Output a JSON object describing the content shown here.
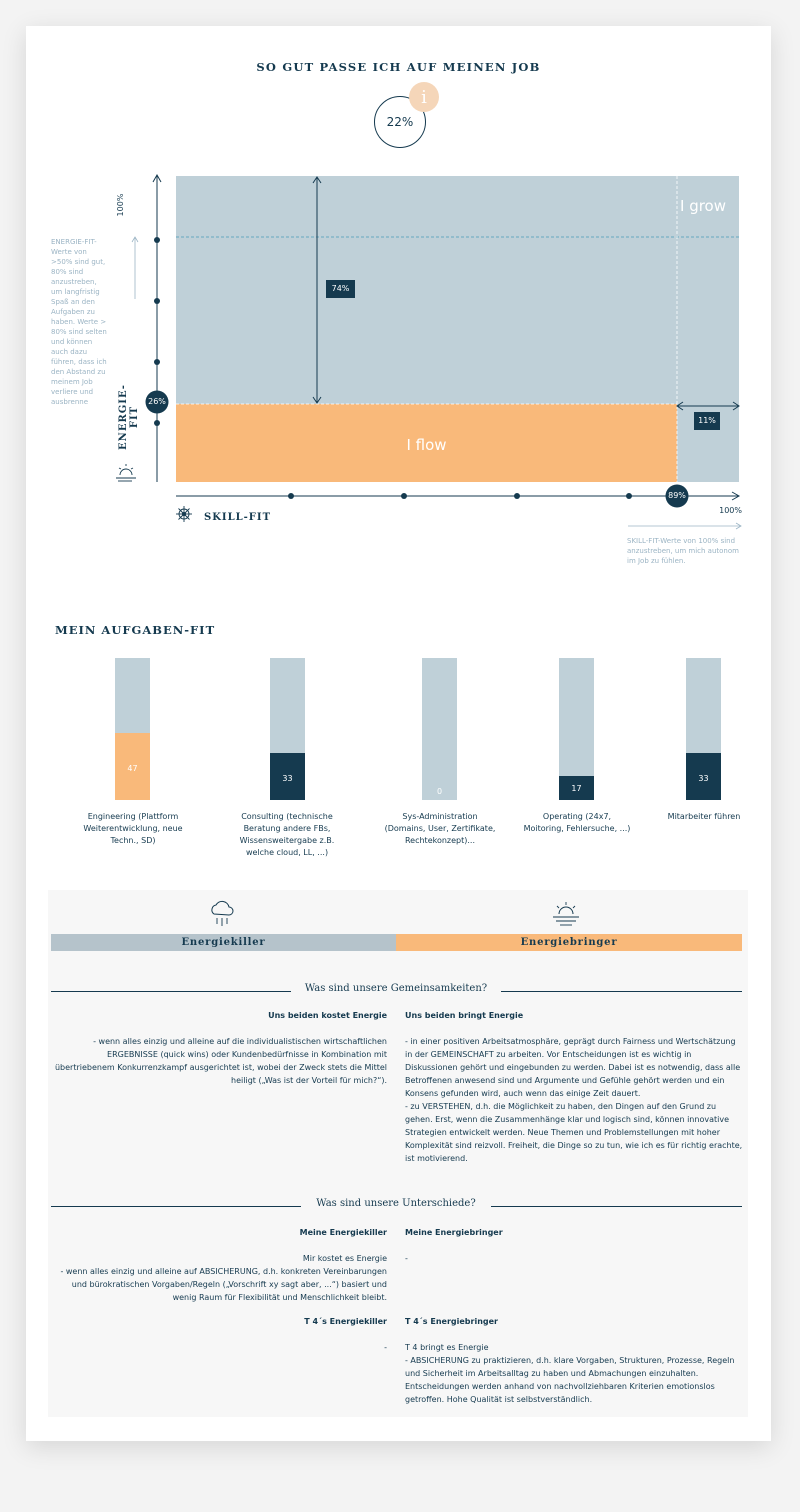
{
  "header": {
    "title": "SO GUT PASSE ICH AUF MEINEN JOB",
    "score": "22%",
    "info_glyph": "i"
  },
  "matrix": {
    "y_axis_label": "ENERGIE-FIT",
    "x_axis_label": "SKILL-FIT",
    "y_top_label": "100%",
    "x_right_label": "100%",
    "energy_value": "26%",
    "skill_value": "89%",
    "gap_energy": "74%",
    "gap_skill": "11%",
    "zone_grow": "I grow",
    "zone_flow": "I flow",
    "energy_note": "ENERGIE-FIT-Werte von >50% sind gut, 80% sind anzustreben, um langfristig Spaß an den Aufgaben zu haben. Werte > 80% sind selten und können auch dazu führen, dass ich den Abstand zu meinem Job verliere und ausbrenne",
    "skill_note": "SKILL-FIT-Werte von 100% sind anzustreben, um mich autonom im Job zu fühlen.",
    "colors": {
      "grow": "#bfd0d8",
      "flow": "#f9b97a",
      "dark": "#153a4f"
    }
  },
  "tasks": {
    "title": "MEIN AUFGABEN-FIT",
    "items": [
      {
        "label": "Engineering (Plattform Weiterentwicklung, neue Techn., SD)",
        "value": 47,
        "color": "#f9b97a"
      },
      {
        "label": "Consulting (technische Beratung andere FBs, Wissensweitergabe z.B. welche cloud, LL, ...)",
        "value": 33,
        "color": "#153a4f"
      },
      {
        "label": "Sys-Administration (Domains, User, Zertifikate, Rechtekonzept)...",
        "value": 0,
        "color": "#153a4f"
      },
      {
        "label": "Operating (24x7, Moitoring, Fehlersuche, ...)",
        "value": 17,
        "color": "#153a4f"
      },
      {
        "label": "Mitarbeiter führen",
        "value": 33,
        "color": "#153a4f"
      }
    ]
  },
  "energy": {
    "killer_label": "Energiekiller",
    "bringer_label": "Energiebringer",
    "common_heading": "Was sind unsere Gemeinsamkeiten?",
    "common_left_title": "Uns beiden kostet Energie",
    "common_right_title": "Uns beiden bringt Energie",
    "common_left_text": "- wenn alles einzig und alleine auf die individualistischen wirtschaftlichen ERGEBNISSE (quick wins) oder Kundenbedürfnisse in Kombination mit übertriebenem Konkurrenzkampf ausgerichtet ist, wobei der Zweck stets die Mittel heiligt („Was ist der Vorteil für mich?“).",
    "common_right_text": "- in einer positiven Arbeitsatmosphäre, geprägt durch Fairness und Wertschätzung in der GEMEINSCHAFT zu arbeiten. Vor Entscheidungen ist es wichtig in Diskussionen gehört und eingebunden zu werden. Dabei ist es notwendig, dass alle Betroffenen anwesend sind und Argumente und Gefühle gehört werden und ein Konsens gefunden wird, auch wenn das einige Zeit dauert.\n- zu VERSTEHEN, d.h. die Möglichkeit zu haben, den Dingen auf den Grund zu gehen. Erst, wenn die Zusammenhänge klar und logisch sind, können innovative Strategien entwickelt werden. Neue Themen und Problemstellungen mit hoher Komplexität sind reizvoll. Freiheit, die Dinge so zu tun, wie ich es für richtig erachte, ist motivierend.",
    "diff_heading": "Was sind unsere Unterschiede?",
    "mine_left_title": "Meine Energiekiller",
    "mine_right_title": "Meine Energiebringer",
    "mine_left_text": "Mir kostet es Energie\n- wenn alles einzig und alleine auf ABSICHERUNG, d.h. konkreten Vereinbarungen und bürokratischen Vorgaben/Regeln („Vorschrift xy sagt aber, ...“) basiert und wenig Raum für Flexibilität und Menschlichkeit bleibt.",
    "mine_right_text": "-",
    "t4_left_title": "T 4´s Energiekiller",
    "t4_right_title": "T 4´s Energiebringer",
    "t4_left_text": "-",
    "t4_right_text": "T 4 bringt es Energie\n- ABSICHERUNG zu praktizieren, d.h. klare Vorgaben, Strukturen, Prozesse, Regeln und Sicherheit im Arbeitsalltag zu haben und Abmachungen einzuhalten. Entscheidungen werden anhand von nachvollziehbaren Kriterien emotionslos getroffen. Hohe Qualität ist selbstverständlich."
  }
}
